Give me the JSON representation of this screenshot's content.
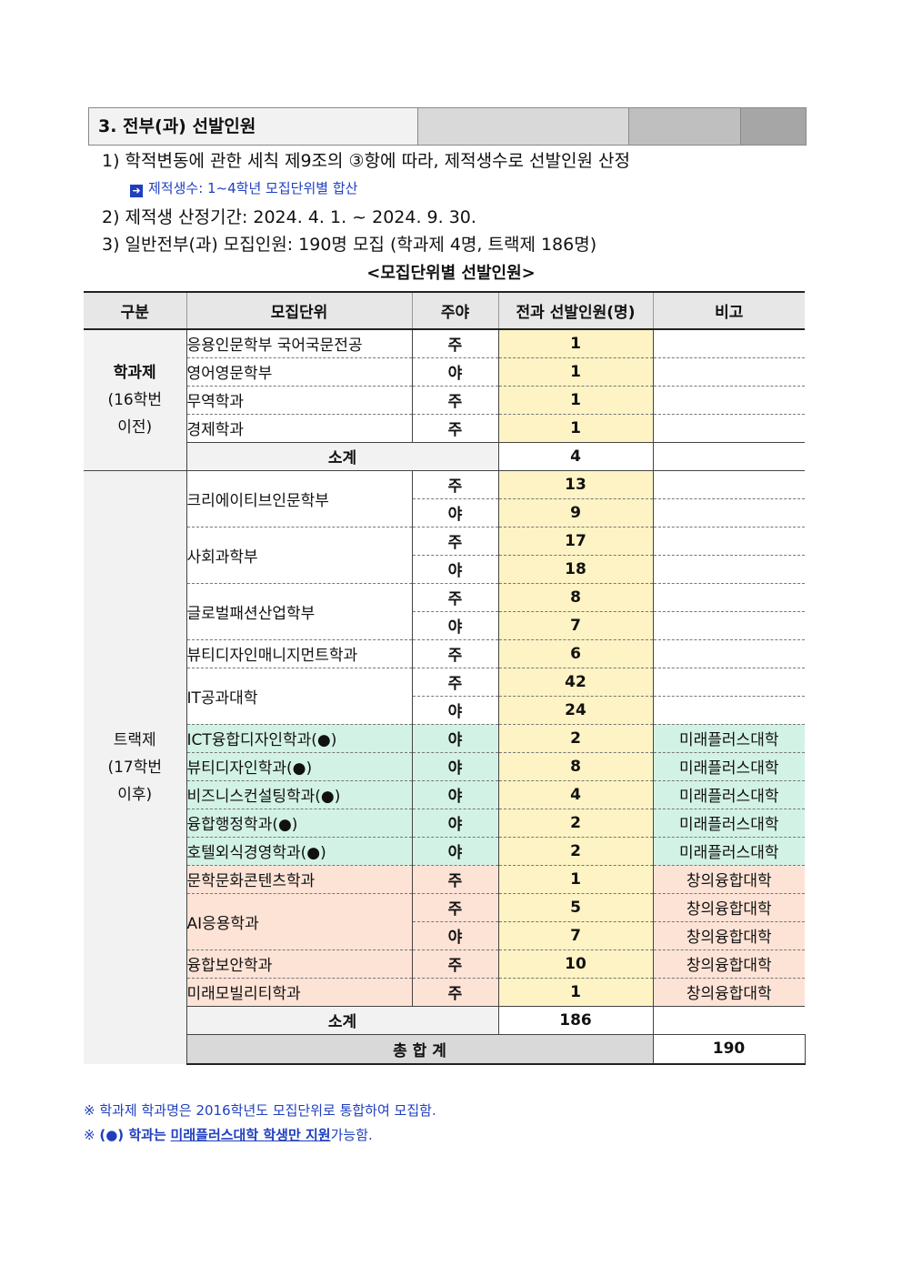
{
  "section": {
    "title": "3. 전부(과) 선발인원"
  },
  "lines": [
    "1) 학적변동에 관한 세칙 제9조의 ③항에 따라, 제적생수로 선발인원 산정",
    "2) 제적생 산정기간: 2024. 4. 1. ~ 2024. 9. 30.",
    "3) 일반전부(과) 모집인원: 190명 모집 (학과제 4명, 트랙제 186명)"
  ],
  "note1": "제적생수: 1~4학년 모집단위별 합산",
  "caption": "<모집단위별 선발인원>",
  "table": {
    "headers": [
      "구분",
      "모집단위",
      "주야",
      "전과 선발인원(명)",
      "비고"
    ],
    "group1": {
      "name": "학과제",
      "sub1": "(16학번",
      "sub2": "이전)"
    },
    "group2": {
      "name": "트랙제",
      "sub1": "(17학번",
      "sub2": "이후)"
    },
    "rows": [
      {
        "unit": "응용인문학부 국어국문전공",
        "dn": "주",
        "num": "1",
        "note": ""
      },
      {
        "unit": "영어영문학부",
        "dn": "야",
        "num": "1",
        "note": ""
      },
      {
        "unit": "무역학과",
        "dn": "주",
        "num": "1",
        "note": ""
      },
      {
        "unit": "경제학과",
        "dn": "주",
        "num": "1",
        "note": ""
      },
      {
        "unit": "크리에이티브인문학부",
        "dn": "주",
        "num": "13",
        "note": ""
      },
      {
        "unit": "",
        "dn": "야",
        "num": "9",
        "note": ""
      },
      {
        "unit": "사회과학부",
        "dn": "주",
        "num": "17",
        "note": ""
      },
      {
        "unit": "",
        "dn": "야",
        "num": "18",
        "note": ""
      },
      {
        "unit": "글로벌패션산업학부",
        "dn": "주",
        "num": "8",
        "note": ""
      },
      {
        "unit": "",
        "dn": "야",
        "num": "7",
        "note": ""
      },
      {
        "unit": "뷰티디자인매니지먼트학과",
        "dn": "주",
        "num": "6",
        "note": ""
      },
      {
        "unit": "IT공과대학",
        "dn": "주",
        "num": "42",
        "note": ""
      },
      {
        "unit": "",
        "dn": "야",
        "num": "24",
        "note": ""
      },
      {
        "unit": "ICT융합디자인학과(●)",
        "dn": "야",
        "num": "2",
        "note": "미래플러스대학"
      },
      {
        "unit": "뷰티디자인학과(●)",
        "dn": "야",
        "num": "8",
        "note": "미래플러스대학"
      },
      {
        "unit": "비즈니스컨설팅학과(●)",
        "dn": "야",
        "num": "4",
        "note": "미래플러스대학"
      },
      {
        "unit": "융합행정학과(●)",
        "dn": "야",
        "num": "2",
        "note": "미래플러스대학"
      },
      {
        "unit": "호텔외식경영학과(●)",
        "dn": "야",
        "num": "2",
        "note": "미래플러스대학"
      },
      {
        "unit": "문학문화콘텐츠학과",
        "dn": "주",
        "num": "1",
        "note": "창의융합대학"
      },
      {
        "unit": "AI응용학과",
        "dn": "주",
        "num": "5",
        "note": "창의융합대학"
      },
      {
        "unit": "",
        "dn": "야",
        "num": "7",
        "note": "창의융합대학"
      },
      {
        "unit": "융합보안학과",
        "dn": "주",
        "num": "10",
        "note": "창의융합대학"
      },
      {
        "unit": "미래모빌리티학과",
        "dn": "주",
        "num": "1",
        "note": "창의융합대학"
      }
    ],
    "subtotal_label": "소계",
    "subtotal1": "4",
    "subtotal2": "186",
    "total_label": "총 합 계",
    "total": "190"
  },
  "footnotes": {
    "f1": "※ 학과제 학과명은 2016학년도 모집단위로 통합하여 모집함.",
    "f2_prefix": "※ ",
    "f2_mark": "(●) 학과는",
    "f2_u": "미래플러스대학 학생만 지원",
    "f2_suffix": "가능함."
  }
}
